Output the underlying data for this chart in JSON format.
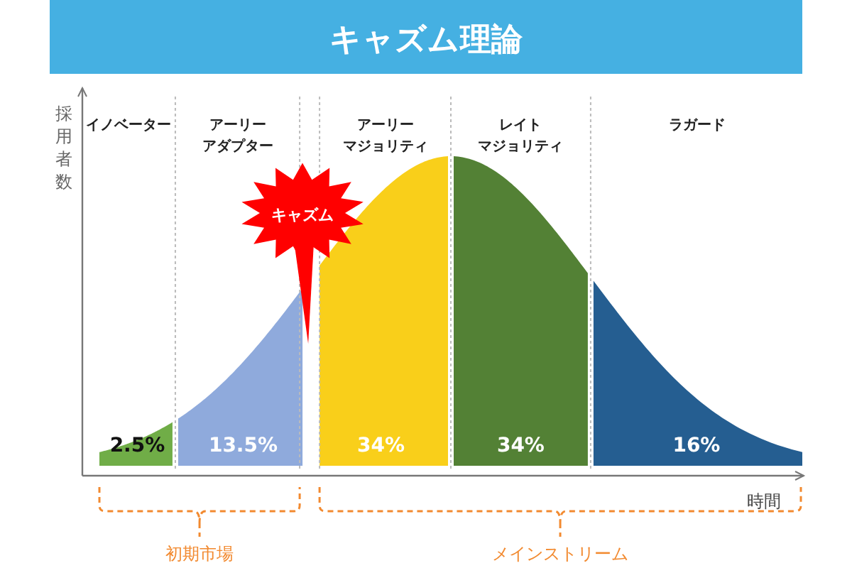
{
  "chart_data": {
    "type": "other",
    "title": "キャズム理論",
    "xlabel": "時間",
    "ylabel": "採用者数",
    "categories": [
      "イノベーター",
      "アーリーアダプター",
      "アーリーマジョリティ",
      "レイトマジョリティ",
      "ラガード"
    ],
    "values": [
      2.5,
      13.5,
      34,
      34,
      16
    ],
    "colors": [
      "#70ad47",
      "#8faadc",
      "#f9cf1a",
      "#538135",
      "#255e91"
    ],
    "value_labels": [
      "2.5%",
      "13.5%",
      "34%",
      "34%",
      "16%"
    ],
    "annotations": [
      "キャズム",
      "初期市場",
      "メインストリーム"
    ]
  }
}
